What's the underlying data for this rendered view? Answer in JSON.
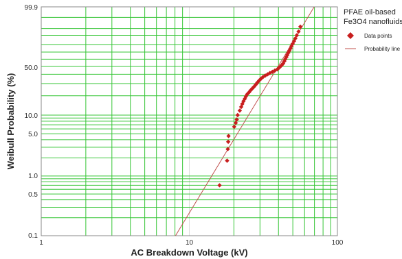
{
  "chart_data": {
    "type": "scatter",
    "x_scale": "log",
    "y_scale": "weibull",
    "xlim": [
      1,
      100
    ],
    "ylim": [
      0.1,
      99.9
    ],
    "xlabel": "AC Breakdown Voltage (kV)",
    "ylabel": "Weibull Probability (%)",
    "grid": true,
    "legend_position": "top-right",
    "legend_title": "PFAE oil-based Fe3O4 nanofluids",
    "legend_title_lines": [
      "PFAE oil-based",
      "Fe3O4 nanofluids"
    ],
    "x_tick_labels": [
      "1",
      "10",
      "100"
    ],
    "y_tick_labels": [
      "99.9",
      "50.0",
      "10.0",
      "5.0",
      "1.0",
      "0.5",
      "0.1"
    ],
    "series": [
      {
        "name": "Data points",
        "marker": "diamond",
        "color": "#c81e1e",
        "points": [
          [
            16.0,
            0.7
          ],
          [
            18.0,
            1.8
          ],
          [
            18.2,
            2.8
          ],
          [
            18.3,
            3.7
          ],
          [
            18.4,
            4.6
          ],
          [
            20.1,
            6.5
          ],
          [
            20.6,
            7.5
          ],
          [
            20.9,
            8.5
          ],
          [
            21.2,
            10.0
          ],
          [
            21.9,
            11.8
          ],
          [
            22.4,
            13.5
          ],
          [
            22.8,
            15.0
          ],
          [
            23.2,
            16.5
          ],
          [
            23.7,
            18.0
          ],
          [
            24.1,
            19.5
          ],
          [
            24.6,
            21.0
          ],
          [
            25.3,
            22.5
          ],
          [
            25.9,
            24.0
          ],
          [
            26.6,
            25.5
          ],
          [
            27.3,
            27.0
          ],
          [
            28.1,
            29.0
          ],
          [
            28.8,
            31.0
          ],
          [
            29.6,
            33.0
          ],
          [
            30.5,
            35.0
          ],
          [
            31.5,
            37.0
          ],
          [
            32.6,
            38.5
          ],
          [
            33.8,
            40.0
          ],
          [
            35.0,
            41.5
          ],
          [
            36.4,
            43.0
          ],
          [
            37.8,
            44.5
          ],
          [
            39.2,
            46.0
          ],
          [
            40.3,
            48.0
          ],
          [
            41.3,
            50.0
          ],
          [
            42.2,
            52.0
          ],
          [
            43.0,
            54.0
          ],
          [
            43.8,
            57.0
          ],
          [
            44.5,
            60.0
          ],
          [
            45.2,
            63.0
          ],
          [
            45.9,
            66.0
          ],
          [
            46.6,
            69.0
          ],
          [
            47.4,
            72.0
          ],
          [
            48.2,
            75.0
          ],
          [
            49.0,
            78.0
          ],
          [
            49.9,
            81.0
          ],
          [
            50.9,
            84.0
          ],
          [
            52.0,
            87.0
          ],
          [
            53.2,
            90.0
          ],
          [
            54.6,
            93.0
          ],
          [
            56.2,
            96.0
          ]
        ]
      },
      {
        "name": "Probability line",
        "type": "line",
        "color": "#c0504d",
        "weibull_shape": 4.1,
        "weibull_scale": 43.5
      }
    ]
  }
}
